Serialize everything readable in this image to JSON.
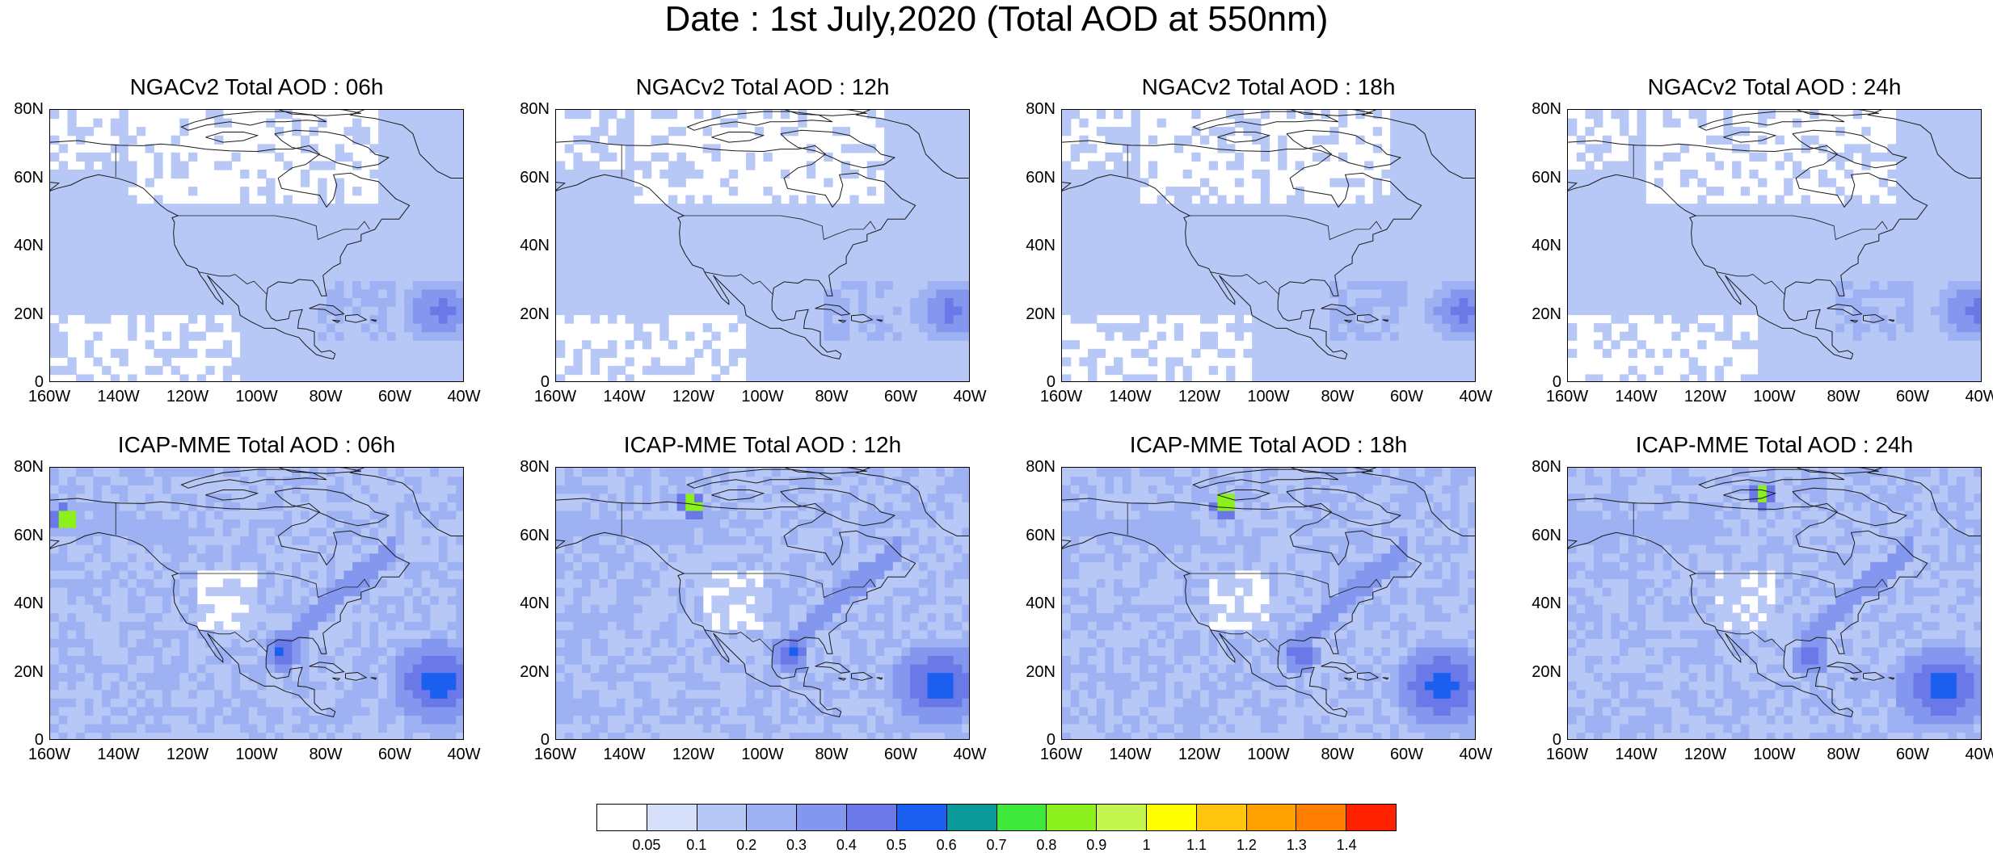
{
  "title": "Date : 1st July,2020 (Total AOD at 550nm)",
  "panels": [
    {
      "title": "NGACv2 Total AOD : 06h",
      "model": "NGACv2",
      "hour": "06h"
    },
    {
      "title": "NGACv2 Total AOD : 12h",
      "model": "NGACv2",
      "hour": "12h"
    },
    {
      "title": "NGACv2 Total AOD : 18h",
      "model": "NGACv2",
      "hour": "18h"
    },
    {
      "title": "NGACv2 Total AOD : 24h",
      "model": "NGACv2",
      "hour": "24h"
    },
    {
      "title": "ICAP-MME Total AOD : 06h",
      "model": "ICAP-MME",
      "hour": "06h"
    },
    {
      "title": "ICAP-MME Total AOD : 12h",
      "model": "ICAP-MME",
      "hour": "12h"
    },
    {
      "title": "ICAP-MME Total AOD : 18h",
      "model": "ICAP-MME",
      "hour": "18h"
    },
    {
      "title": "ICAP-MME Total AOD : 24h",
      "model": "ICAP-MME",
      "hour": "24h"
    }
  ],
  "lat_labels": [
    "80N",
    "60N",
    "40N",
    "20N",
    "0"
  ],
  "lon_labels": [
    "160W",
    "140W",
    "120W",
    "100W",
    "80W",
    "60W",
    "40W"
  ],
  "colorbar": {
    "levels": [
      "0.05",
      "0.1",
      "0.2",
      "0.3",
      "0.4",
      "0.5",
      "0.6",
      "0.7",
      "0.8",
      "0.9",
      "1",
      "1.1",
      "1.2",
      "1.3",
      "1.4"
    ],
    "colors": [
      "#ffffff",
      "#d6e0fb",
      "#b7c7f6",
      "#9db1f3",
      "#8497ee",
      "#6a78e8",
      "#1a5ff0",
      "#0b9a9a",
      "#3de83a",
      "#8cf01c",
      "#c3f54e",
      "#ffff00",
      "#ffc60d",
      "#ffa200",
      "#ff7d00",
      "#ff2100"
    ]
  }
}
